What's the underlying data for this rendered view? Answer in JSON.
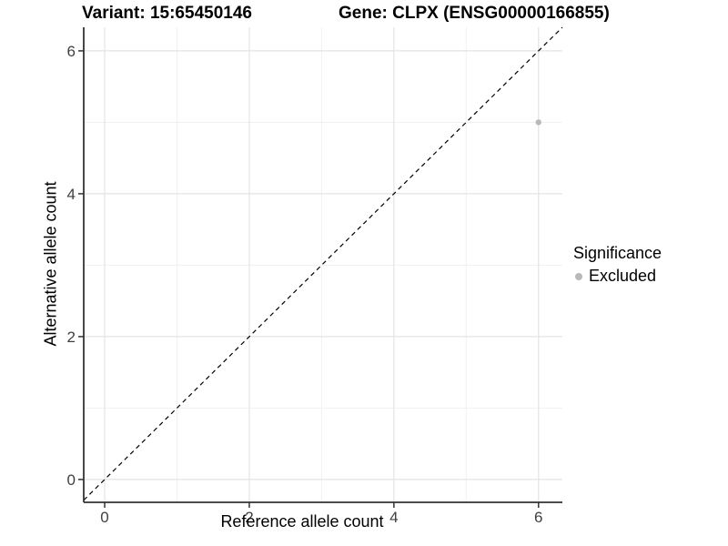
{
  "chart_data": {
    "type": "scatter",
    "titles": {
      "left": "Variant: 15:65450146",
      "right": "Gene: CLPX (ENSG00000166855)"
    },
    "xlabel": "Reference allele count",
    "ylabel": "Alternative allele count",
    "xlim": [
      -0.29,
      6.33
    ],
    "ylim": [
      -0.32,
      6.33
    ],
    "x_ticks": [
      0,
      2,
      4,
      6
    ],
    "y_ticks": [
      0,
      2,
      4,
      6
    ],
    "x_minor": [
      1,
      3,
      5
    ],
    "y_minor": [
      1,
      3,
      5
    ],
    "grid": "on",
    "series": [
      {
        "name": "Excluded",
        "color": "#b9b9b9",
        "points": [
          {
            "x": 6,
            "y": 5
          }
        ]
      }
    ],
    "reference_line": {
      "kind": "identity y=x",
      "style": "dashed",
      "color": "#000000"
    },
    "legend": {
      "title": "Significance",
      "position": "right",
      "items": [
        {
          "label": "Excluded",
          "color": "#b9b9b9"
        }
      ]
    }
  },
  "colors": {
    "background": "#ffffff",
    "grid_major": "#e4e4e4",
    "grid_minor": "#f1f1f1",
    "axis_line": "#333333",
    "tick_mark": "#333333",
    "tick_label": "#404040",
    "point": "#b9b9b9"
  }
}
